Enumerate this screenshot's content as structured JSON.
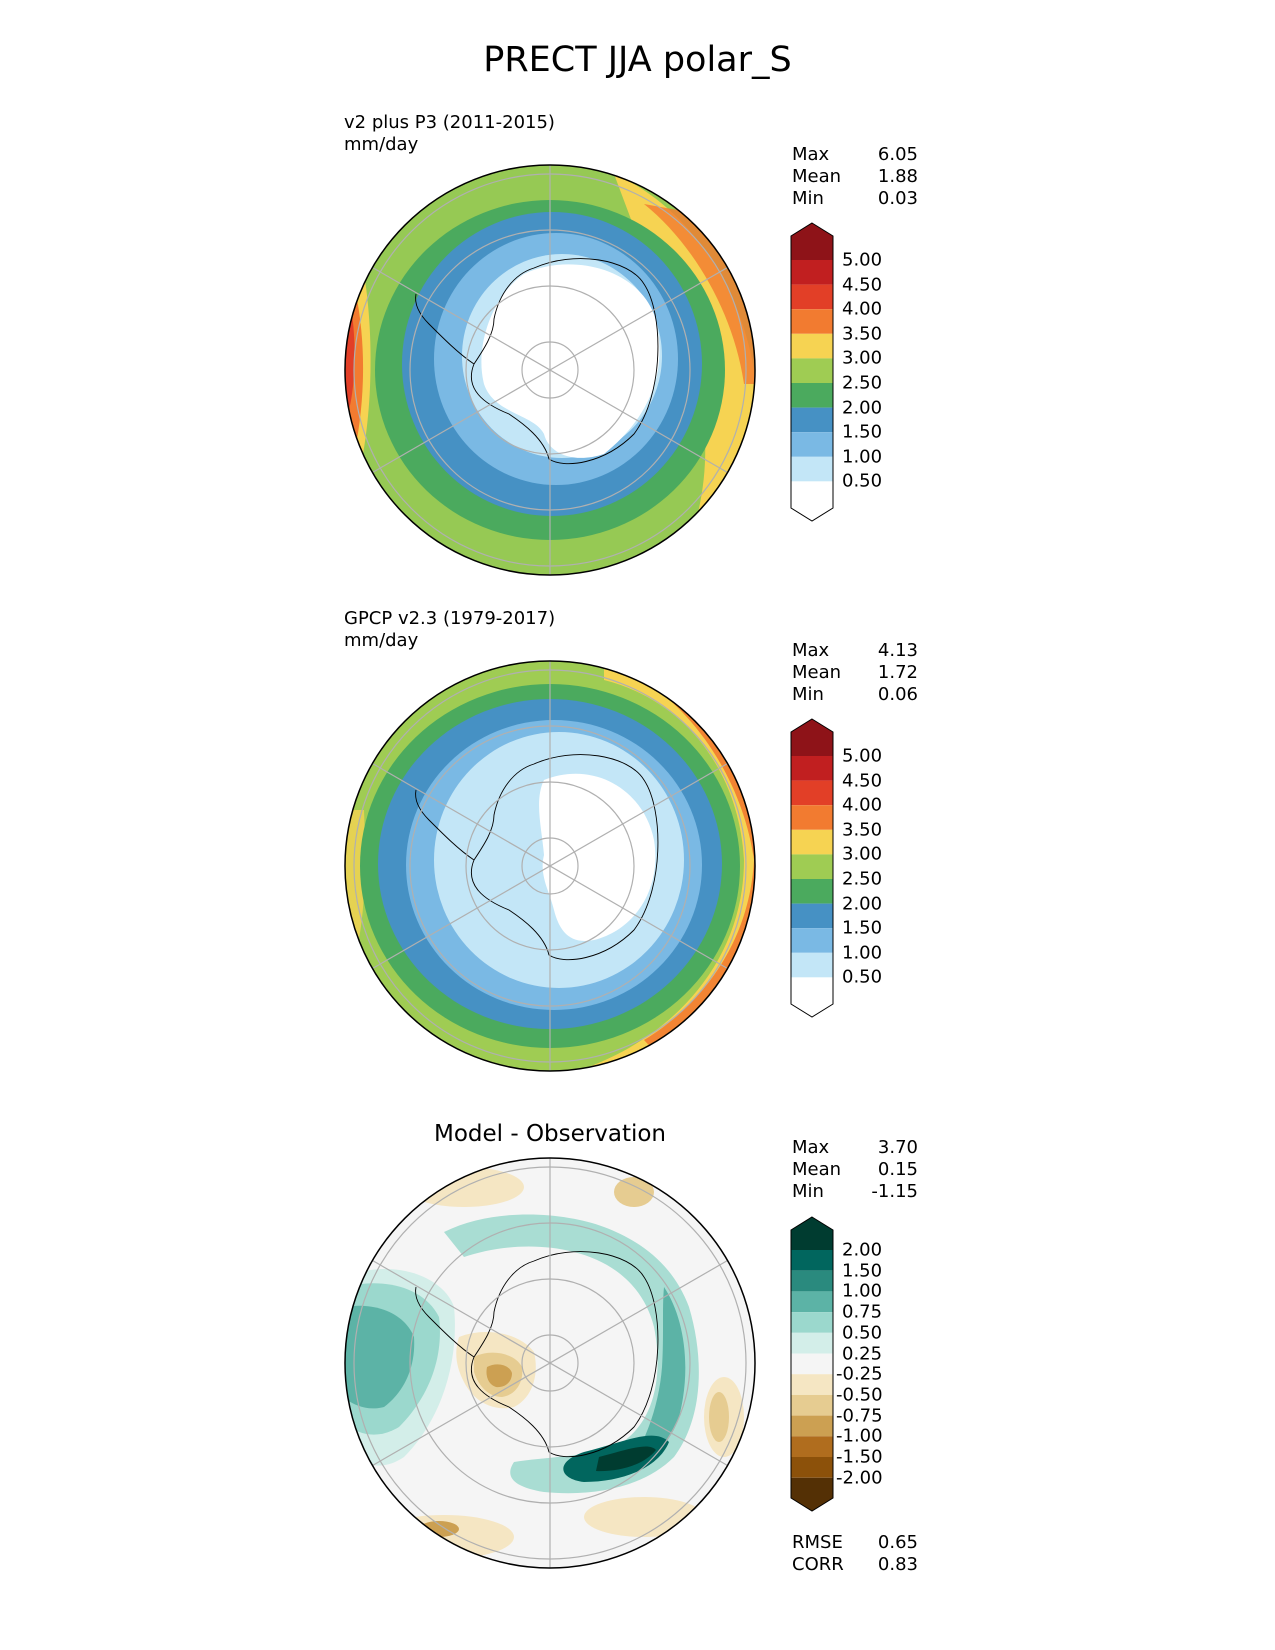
{
  "figure": {
    "title": "PRECT JJA polar_S"
  },
  "panels": [
    {
      "label": "v2 plus P3 (2011-2015)",
      "units": "mm/day",
      "stats": [
        {
          "name": "Max",
          "value": "6.05"
        },
        {
          "name": "Mean",
          "value": "1.88"
        },
        {
          "name": "Min",
          "value": "0.03"
        }
      ],
      "colorbar": {
        "ticks": [
          "0.50",
          "1.00",
          "1.50",
          "2.00",
          "2.50",
          "3.00",
          "3.50",
          "4.00",
          "4.50",
          "5.00"
        ],
        "colors": [
          "#ffffff",
          "#c3e6f7",
          "#7ab9e4",
          "#4691c4",
          "#4baa5e",
          "#9fcc53",
          "#f6d352",
          "#f27b30",
          "#e23f27",
          "#c11f20",
          "#8e1318"
        ]
      }
    },
    {
      "label": "GPCP v2.3 (1979-2017)",
      "units": "mm/day",
      "stats": [
        {
          "name": "Max",
          "value": "4.13"
        },
        {
          "name": "Mean",
          "value": "1.72"
        },
        {
          "name": "Min",
          "value": "0.06"
        }
      ],
      "colorbar": {
        "ticks": [
          "0.50",
          "1.00",
          "1.50",
          "2.00",
          "2.50",
          "3.00",
          "3.50",
          "4.00",
          "4.50",
          "5.00"
        ],
        "colors": [
          "#ffffff",
          "#c3e6f7",
          "#7ab9e4",
          "#4691c4",
          "#4baa5e",
          "#9fcc53",
          "#f6d352",
          "#f27b30",
          "#e23f27",
          "#c11f20",
          "#8e1318"
        ]
      }
    },
    {
      "title": "Model - Observation",
      "stats": [
        {
          "name": "Max",
          "value": "3.70"
        },
        {
          "name": "Mean",
          "value": "0.15"
        },
        {
          "name": "Min",
          "value": "-1.15"
        }
      ],
      "colorbar": {
        "ticks": [
          "-2.00",
          "-1.50",
          "-1.00",
          "-0.75",
          "-0.50",
          "-0.25",
          "0.25",
          "0.50",
          "0.75",
          "1.00",
          "1.50",
          "2.00"
        ],
        "colors": [
          "#543005",
          "#8c510a",
          "#b06d1e",
          "#cca052",
          "#e6cc91",
          "#f5e6c3",
          "#f5f5f5",
          "#d3eee9",
          "#9bd8cd",
          "#5cb3a6",
          "#2a8a7e",
          "#01665e",
          "#003c30"
        ]
      },
      "metrics": [
        {
          "name": "RMSE",
          "value": "0.65"
        },
        {
          "name": "CORR",
          "value": "0.83"
        }
      ]
    }
  ]
}
